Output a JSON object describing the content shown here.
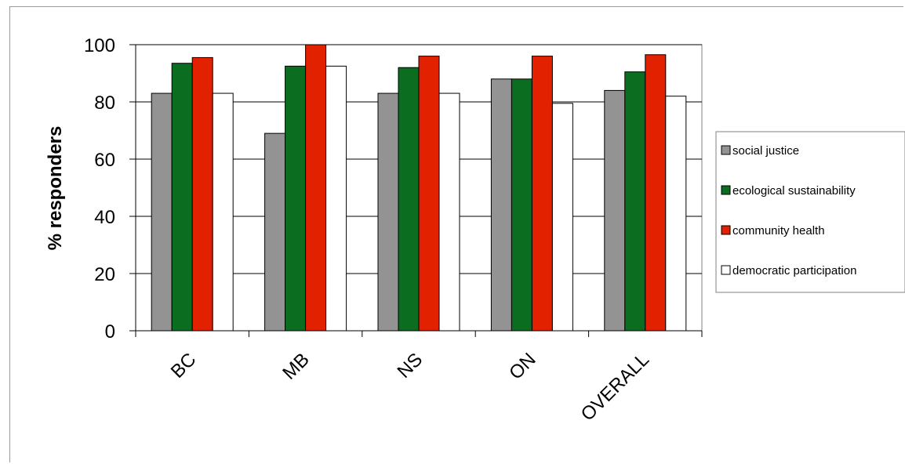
{
  "chart_data": {
    "type": "bar",
    "title": "",
    "xlabel": "",
    "ylabel": "% responders",
    "ylim": [
      0,
      100
    ],
    "yticks": [
      "0",
      "20",
      "40",
      "60",
      "80",
      "100"
    ],
    "grid": true,
    "legend_position": "right",
    "categories": [
      "BC",
      "MB",
      "NS",
      "ON",
      "OVERALL"
    ],
    "series": [
      {
        "name": "social justice",
        "color": "#939393",
        "values": [
          83,
          69,
          83,
          88,
          84
        ]
      },
      {
        "name": "ecological sustainability",
        "color": "#0b6d1f",
        "values": [
          93.5,
          92.5,
          92,
          88,
          90.5
        ]
      },
      {
        "name": "community health",
        "color": "#e22100",
        "values": [
          95.5,
          100,
          96,
          96,
          96.5
        ]
      },
      {
        "name": "democratic participation",
        "color": "#ffffff",
        "values": [
          83,
          92.5,
          83,
          79.5,
          82
        ]
      }
    ]
  }
}
